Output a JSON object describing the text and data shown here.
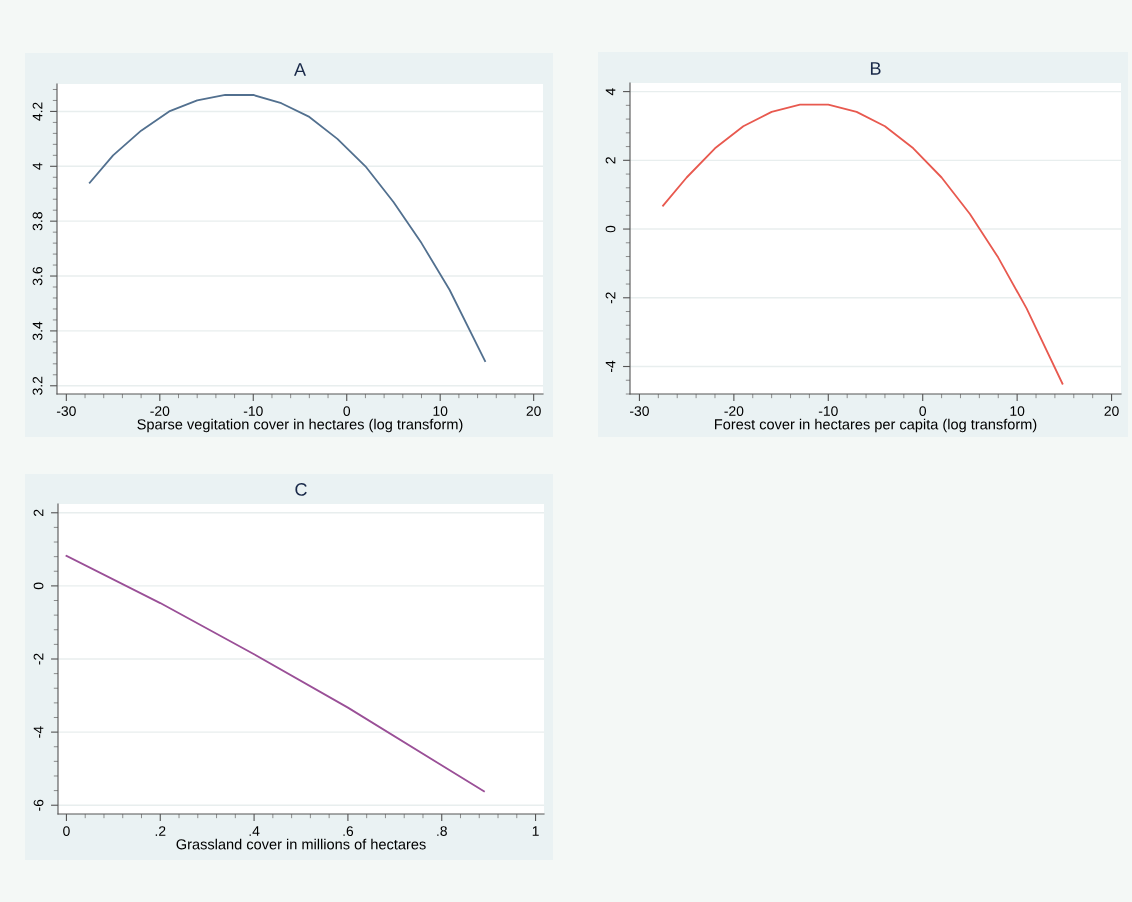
{
  "chart_data": [
    {
      "type": "line",
      "title": "A",
      "xlabel": "Sparse vegitation cover in hectares (log transform)",
      "grid": "y",
      "line_style": "solid",
      "x": [
        -27.5,
        -25,
        -22,
        -19,
        -16,
        -13,
        -10,
        -7,
        -4,
        -1,
        2,
        5,
        8,
        11,
        14.8
      ],
      "series": [
        {
          "color": "#52708f",
          "values": [
            3.94,
            4.04,
            4.13,
            4.2,
            4.24,
            4.26,
            4.26,
            4.23,
            4.18,
            4.1,
            4.0,
            3.87,
            3.72,
            3.55,
            3.29
          ]
        }
      ],
      "xlim": [
        -31,
        21
      ],
      "xticks": [
        -30,
        -20,
        -10,
        0,
        10,
        20
      ],
      "ylim": [
        3.17,
        4.3
      ],
      "yticks": [
        3.2,
        3.4,
        3.6,
        3.8,
        4,
        4.2
      ]
    },
    {
      "type": "line",
      "title": "B",
      "xlabel": "Forest cover in hectares per capita (log transform)",
      "grid": "y",
      "line_style": "solid",
      "x": [
        -27.5,
        -25,
        -22,
        -19,
        -16,
        -13,
        -10,
        -7,
        -4,
        -1,
        2,
        5,
        8,
        11,
        14.8
      ],
      "series": [
        {
          "color": "#e8594f",
          "values": [
            0.68,
            1.5,
            2.35,
            2.99,
            3.41,
            3.62,
            3.62,
            3.41,
            2.99,
            2.35,
            1.5,
            0.44,
            -0.83,
            -2.31,
            -4.5
          ]
        }
      ],
      "xlim": [
        -31,
        21
      ],
      "xticks": [
        -30,
        -20,
        -10,
        0,
        10,
        20
      ],
      "ylim": [
        -4.8,
        4.25
      ],
      "yticks": [
        -4,
        -2,
        0,
        2,
        4
      ]
    },
    {
      "type": "line",
      "title": "C",
      "xlabel": "Grassland cover in millions of hectares",
      "grid": "y",
      "line_style": "solid",
      "x": [
        0,
        0.2,
        0.4,
        0.6,
        0.89
      ],
      "series": [
        {
          "color": "#9a4f97",
          "values": [
            0.82,
            -0.47,
            -1.87,
            -3.33,
            -5.62
          ]
        }
      ],
      "xlim": [
        -0.018,
        1.018
      ],
      "xticks": [
        0,
        {
          "value": 0.2,
          "label": ".2"
        },
        {
          "value": 0.4,
          "label": ".4"
        },
        {
          "value": 0.6,
          "label": ".6"
        },
        {
          "value": 0.8,
          "label": ".8"
        },
        1
      ],
      "ylim": [
        -6.24,
        2.24
      ],
      "yticks": [
        -6,
        -4,
        -2,
        0,
        2
      ]
    }
  ]
}
